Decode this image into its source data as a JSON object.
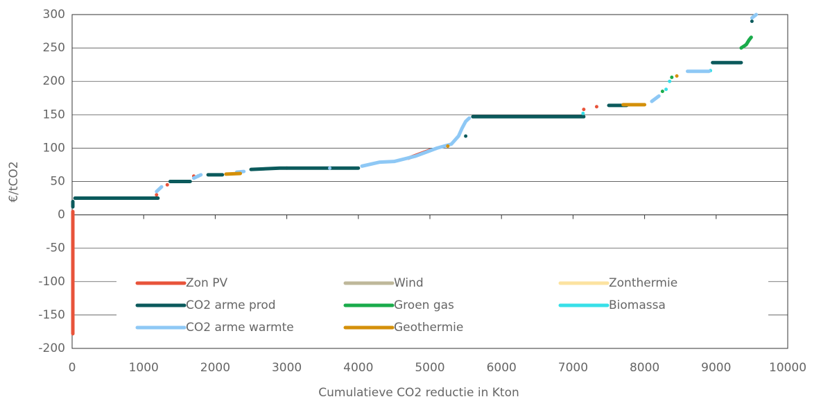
{
  "chart_data": {
    "type": "line",
    "xlabel": "Cumulatieve CO2 reductie in Kton",
    "ylabel": "€/tCO2",
    "xlim": [
      0,
      10000
    ],
    "xticks": [
      0,
      1000,
      2000,
      3000,
      4000,
      5000,
      6000,
      7000,
      8000,
      9000,
      10000
    ],
    "ylim": [
      -200,
      300
    ],
    "yticks": [
      -200,
      -150,
      -100,
      -50,
      0,
      50,
      100,
      150,
      200,
      250,
      300
    ],
    "grid": true,
    "series": [
      {
        "name": "Zon PV",
        "color": "#e8533a",
        "x": [
          10,
          10,
          null,
          1180,
          null,
          1330,
          null,
          1700,
          null,
          3000,
          null,
          4700,
          5000,
          null,
          7150,
          null,
          7330
        ],
        "values": [
          -178,
          5,
          null,
          30,
          null,
          45,
          null,
          58,
          null,
          70,
          null,
          85,
          97,
          null,
          158,
          null,
          162
        ]
      },
      {
        "name": "Wind",
        "color": "#bfb89a",
        "x": [],
        "values": []
      },
      {
        "name": "Zonthermie",
        "color": "#fce3a0",
        "x": [],
        "values": []
      },
      {
        "name": "CO2 arme prod",
        "color": "#0b5a5c",
        "x": [
          10,
          10,
          null,
          40,
          1200,
          null,
          1370,
          1650,
          null,
          1900,
          2100,
          null,
          2500,
          2900,
          4000,
          null,
          5500,
          null,
          5600,
          7150,
          null,
          7500,
          7750,
          null,
          8950,
          9350,
          null,
          9500
        ],
        "values": [
          12,
          20,
          null,
          25,
          25,
          null,
          50,
          50,
          null,
          60,
          60,
          null,
          68,
          70,
          70,
          null,
          118,
          null,
          147,
          147,
          null,
          164,
          164,
          null,
          228,
          228,
          null,
          290
        ]
      },
      {
        "name": "Groen gas",
        "color": "#1aab4b",
        "x": [
          1760,
          null,
          8250,
          null,
          8380,
          null,
          9350,
          9420,
          9460,
          9490
        ],
        "values": [
          58,
          null,
          185,
          null,
          206,
          null,
          250,
          255,
          262,
          266
        ]
      },
      {
        "name": "Biomassa",
        "color": "#38e0e8",
        "x": [
          7140,
          null,
          8300,
          null,
          8350,
          null,
          8920
        ],
        "values": [
          152,
          null,
          188,
          null,
          200,
          null,
          216
        ]
      },
      {
        "name": "CO2 arme warmte",
        "color": "#8ec8f5",
        "x": [
          1180,
          1250,
          null,
          1700,
          1800,
          null,
          2300,
          2400,
          null,
          3600,
          null,
          4050,
          4300,
          4500,
          4800,
          5100,
          5300,
          5400,
          5450,
          5500,
          5550,
          null,
          8100,
          8200,
          null,
          8600,
          8900,
          null,
          9500,
          9560
        ],
        "values": [
          35,
          42,
          null,
          55,
          60,
          null,
          64,
          65,
          null,
          70,
          null,
          73,
          79,
          80,
          88,
          100,
          106,
          118,
          130,
          140,
          145,
          null,
          170,
          178,
          null,
          215,
          215,
          null,
          295,
          300
        ]
      },
      {
        "name": "Geothermie",
        "color": "#d4900a",
        "x": [
          2150,
          2350,
          null,
          5250,
          null,
          7700,
          8000,
          null,
          8450
        ],
        "values": [
          61,
          62,
          null,
          103,
          null,
          165,
          165,
          null,
          208
        ]
      }
    ]
  }
}
